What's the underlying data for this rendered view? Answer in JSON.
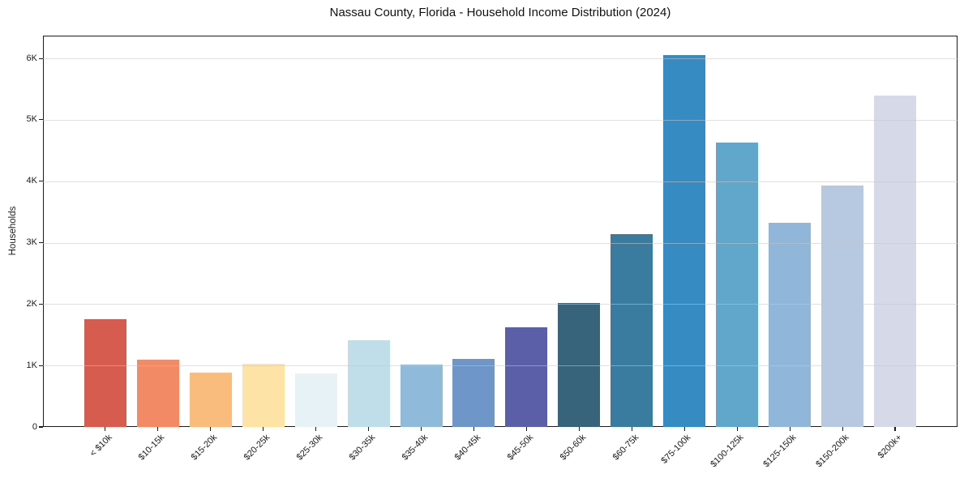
{
  "title": "Nassau County, Florida - Household Income Distribution (2024)",
  "chart_data": {
    "type": "bar",
    "title": "Nassau County, Florida - Household Income Distribution (2024)",
    "xlabel": "",
    "ylabel": "Households",
    "categories": [
      "< $10k",
      "$10-15k",
      "$15-20k",
      "$20-25k",
      "$25-30k",
      "$30-35k",
      "$35-40k",
      "$40-45k",
      "$45-50k",
      "$50-60k",
      "$60-75k",
      "$75-100k",
      "$100-125k",
      "$125-150k",
      "$150-200k",
      "$200k+"
    ],
    "values": [
      1760,
      1100,
      890,
      1025,
      870,
      1410,
      1010,
      1115,
      1620,
      2015,
      3145,
      6055,
      4625,
      3330,
      3935,
      5400
    ],
    "bar_colors": [
      "#d65c4f",
      "#f38a66",
      "#fabc7d",
      "#fde3a6",
      "#e7f2f6",
      "#bfdeea",
      "#90bad9",
      "#6e96c8",
      "#5b5fa7",
      "#37647b",
      "#3a7ba0",
      "#368bc3",
      "#61a7cc",
      "#90b6d9",
      "#b7c9e1",
      "#d6d9e8"
    ],
    "ylim": [
      0,
      6370
    ],
    "yticks": [
      0,
      1000,
      2000,
      3000,
      4000,
      5000,
      6000
    ],
    "ytick_labels": [
      "0",
      "1K",
      "2K",
      "3K",
      "4K",
      "5K",
      "6K"
    ],
    "grid": "horizontal, drawn over bars",
    "legend": "none",
    "background_color": "#ffffff",
    "frame_color": "#1a1a1a",
    "grid_color": "#c7c7c7"
  }
}
